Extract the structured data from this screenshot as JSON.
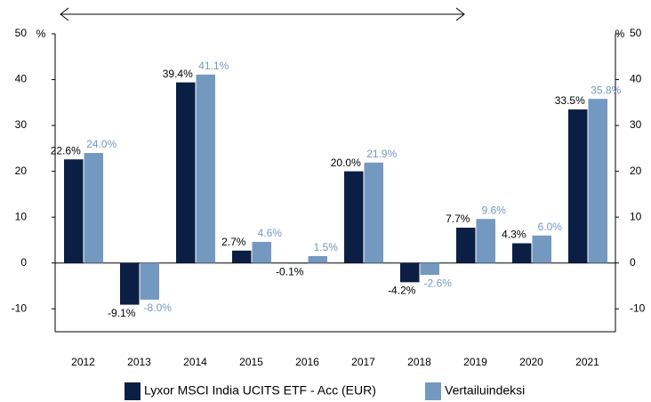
{
  "chart_data": {
    "type": "bar",
    "y_unit": "%",
    "categories": [
      "2012",
      "2013",
      "2014",
      "2015",
      "2016",
      "2017",
      "2018",
      "2019",
      "2020",
      "2021"
    ],
    "series": [
      {
        "name": "Lyxor MSCI India UCITS ETF - Acc (EUR)",
        "color": "#0b1f45",
        "values": [
          22.6,
          -9.1,
          39.4,
          2.7,
          -0.1,
          20.0,
          -4.2,
          7.7,
          4.3,
          33.5
        ],
        "value_labels": [
          "22.6%",
          "-9.1%",
          "39.4%",
          "2.7%",
          "-0.1%",
          "20.0%",
          "-4.2%",
          "7.7%",
          "4.3%",
          "33.5%"
        ]
      },
      {
        "name": "Vertailuindeksi",
        "color": "#7399c0",
        "values": [
          24.0,
          -8.0,
          41.1,
          4.6,
          1.5,
          21.9,
          -2.6,
          9.6,
          6.0,
          35.8
        ],
        "value_labels": [
          "24.0%",
          "-8.0%",
          "41.1%",
          "4.6%",
          "1.5%",
          "21.9%",
          "-2.6%",
          "9.6%",
          "6.0%",
          "35.8%"
        ]
      }
    ],
    "ylim": [
      -15,
      50
    ],
    "yticks": [
      -10,
      0,
      10,
      20,
      30,
      40,
      50
    ],
    "y2lim": [
      -15,
      50
    ],
    "y2ticks": [
      -10,
      0,
      10,
      20,
      30,
      40,
      50
    ],
    "legend": "bottom"
  }
}
